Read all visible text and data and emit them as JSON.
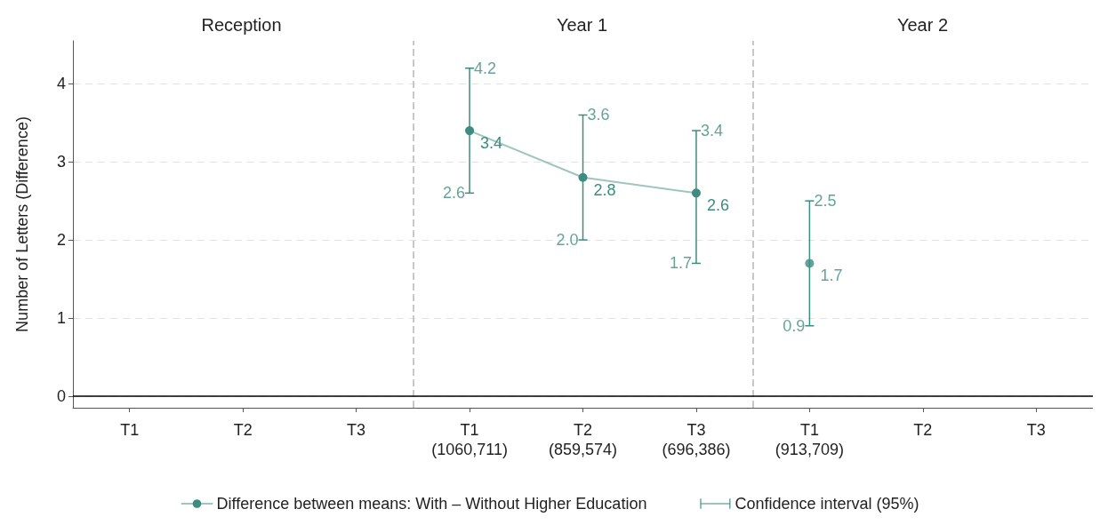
{
  "chart_data": {
    "type": "line",
    "ylabel": "Number of Letters (Difference)",
    "categories": [
      "T1",
      "T2",
      "T3",
      "T1\n(1060,711)",
      "T2\n(859,574)",
      "T3\n(696,386)",
      "T1\n(913,709)",
      "T2",
      "T3"
    ],
    "series": [
      {
        "name": "Difference between means: With – Without Higher Education",
        "color": "#3d8c80",
        "values": [
          null,
          null,
          null,
          3.4,
          2.8,
          2.6,
          null,
          null,
          null
        ],
        "errors": [
          null,
          null,
          null,
          [
            2.6,
            4.2
          ],
          [
            2.0,
            3.6
          ],
          [
            1.7,
            3.4
          ],
          null,
          null,
          null
        ]
      },
      {
        "type": "scatter",
        "color": "#3d8c80",
        "values": [
          null,
          null,
          null,
          null,
          null,
          null,
          1.7,
          null,
          null
        ],
        "errors": [
          null,
          null,
          null,
          null,
          null,
          null,
          [
            0.9,
            2.5
          ],
          null,
          null
        ]
      }
    ],
    "annotations": [
      "Reception",
      "Year 1",
      "Year 2",
      "Confidence interval (95%)",
      {
        "text": "4.2",
        "x": "T1\n(1060,711)",
        "y": 4.2
      },
      {
        "text": "2.6",
        "x": "T1\n(1060,711)",
        "y": 2.6
      },
      {
        "text": "3.6",
        "x": "T2\n(859,574)",
        "y": 3.6
      },
      {
        "text": "2.0",
        "x": "T2\n(859,574)",
        "y": 2.0
      },
      {
        "text": "3.4",
        "x": "T3\n(696,386)",
        "y": 3.4
      },
      {
        "text": "1.7",
        "x": "T3\n(696,386)",
        "y": 1.7
      },
      {
        "text": "2.5",
        "x": "T1\n(913,709)",
        "y": 2.5
      },
      {
        "text": "0.9",
        "x": "T1\n(913,709)",
        "y": 0.9
      }
    ],
    "ref_lines": [
      {
        "axis": "y",
        "value": 0,
        "color": "#000000",
        "line_style": "solid"
      }
    ],
    "ylim": [
      -0.15,
      4.55
    ],
    "yticks": [
      0,
      1,
      2,
      3,
      4
    ],
    "grid": "y",
    "legend": "bottom",
    "marker": "circle",
    "line_style": "solid",
    "data_labels": true
  }
}
